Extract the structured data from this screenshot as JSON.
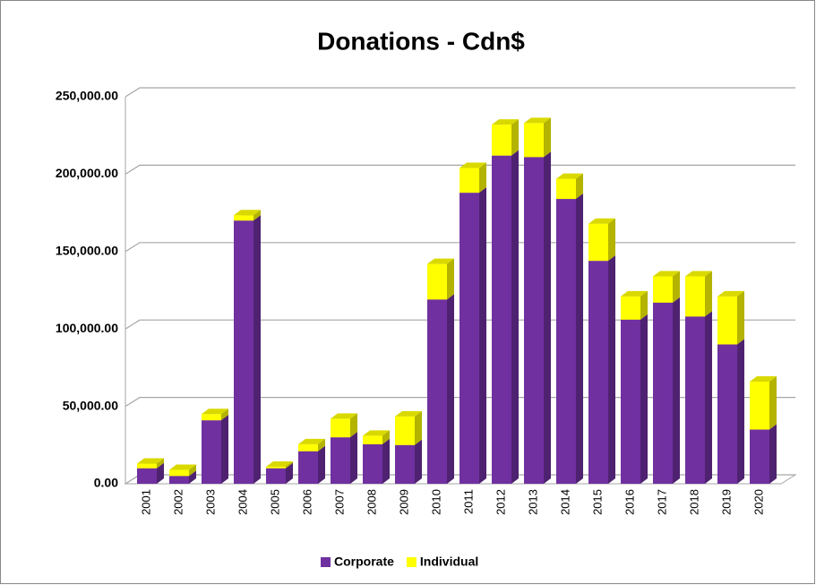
{
  "chart_data": {
    "type": "bar3d_stacked",
    "title": "Donations - Cdn$",
    "categories": [
      "2001",
      "2002",
      "2003",
      "2004",
      "2005",
      "2006",
      "2007",
      "2008",
      "2009",
      "2010",
      "2011",
      "2012",
      "2013",
      "2014",
      "2015",
      "2016",
      "2017",
      "2018",
      "2019",
      "2020"
    ],
    "series": [
      {
        "name": "Corporate",
        "color": "#7030a0",
        "values": [
          10000,
          5000,
          41000,
          170000,
          10000,
          21000,
          30000,
          25500,
          25000,
          119000,
          188000,
          212000,
          211000,
          184000,
          144000,
          106000,
          117000,
          108000,
          90000,
          35000
        ]
      },
      {
        "name": "Individual",
        "color": "#ffff00",
        "values": [
          3000,
          4000,
          4000,
          3500,
          1000,
          4500,
          12000,
          5500,
          18500,
          23000,
          16000,
          20000,
          22000,
          13000,
          24000,
          15000,
          17000,
          26000,
          31000,
          31000
        ]
      }
    ],
    "ylim": [
      0,
      250000
    ],
    "yticks": [
      {
        "value": 0,
        "label": "0.00"
      },
      {
        "value": 50000,
        "label": "50,000.00"
      },
      {
        "value": 100000,
        "label": "100,000.00"
      },
      {
        "value": 150000,
        "label": "150,000.00"
      },
      {
        "value": 200000,
        "label": "200,000.00"
      },
      {
        "value": 250000,
        "label": "250,000.00"
      }
    ],
    "grid": true,
    "legend": "bottom"
  }
}
